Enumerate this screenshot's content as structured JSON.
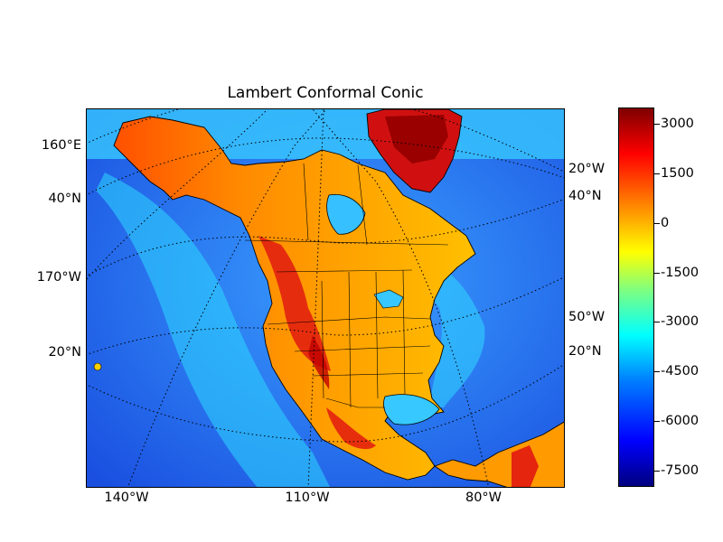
{
  "title": "Lambert Conformal Conic",
  "left_labels": [
    "160°E",
    "40°N",
    "170°W",
    "20°N"
  ],
  "right_labels": [
    "20°W",
    "40°N",
    "50°W",
    "20°N"
  ],
  "bottom_labels": [
    "140°W",
    "110°W",
    "80°W"
  ],
  "colorbar": {
    "ticks": [
      "3000",
      "1500",
      "0",
      "-1500",
      "-3000",
      "-4500",
      "-6000",
      "-7500"
    ],
    "values": [
      3000,
      1500,
      0,
      -1500,
      -3000,
      -4500,
      -6000,
      -7500
    ],
    "range": [
      -8000,
      3500
    ],
    "colormap": [
      "#00007f",
      "#0000ff",
      "#007fff",
      "#00ffff",
      "#7fff7f",
      "#ffff00",
      "#ff7f00",
      "#ff0000",
      "#7f0000"
    ]
  },
  "colors": {
    "ocean_deep": "#1a4fe0",
    "ocean_shelf": "#38c8ff",
    "land_low": "#ffc000",
    "land_mid": "#ff6a00",
    "land_high": "#e01010",
    "ice_cap": "#a00000"
  }
}
